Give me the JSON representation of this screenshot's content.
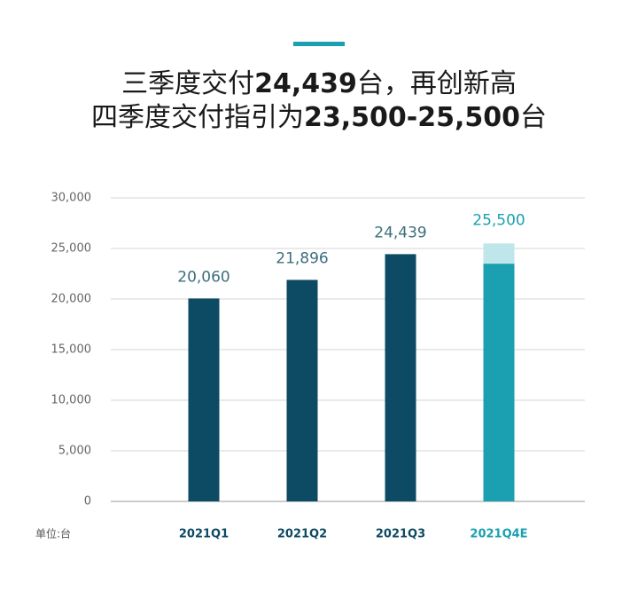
{
  "chart_data": {
    "type": "bar",
    "title": [
      [
        "三季度交付",
        "24,439",
        "台，再创新高"
      ],
      [
        "四季度交付指引为",
        "23,500-25,500",
        "台"
      ]
    ],
    "unit_label": "单位:台",
    "categories": [
      "2021Q1",
      "2021Q2",
      "2021Q3",
      "2021Q4E"
    ],
    "category_colors": [
      "#0d4a63",
      "#0d4a63",
      "#0d4a63",
      "#1aa0b0"
    ],
    "series": [
      {
        "values": [
          20060,
          21896,
          24439,
          null
        ],
        "value_labels": [
          "20,060",
          "21,896",
          "24,439",
          null
        ],
        "color": "#0d4a63"
      },
      {
        "low": [
          null,
          null,
          null,
          23500
        ],
        "high": [
          null,
          null,
          null,
          25500
        ],
        "value_labels": [
          null,
          null,
          null,
          "25,500"
        ],
        "color": "#1aa0b0",
        "range_color": "#bfe6ea"
      }
    ],
    "ylim": [
      0,
      30000
    ],
    "yticks": [
      0,
      {
        "value": 5000,
        "label": "5,000"
      },
      {
        "value": 10000,
        "label": "10,000"
      },
      {
        "value": 15000,
        "label": "15,000"
      },
      {
        "value": 20000,
        "label": "20,000"
      },
      {
        "value": 25000,
        "label": "25,000"
      },
      {
        "value": 30000,
        "label": "30,000"
      }
    ],
    "grid": true
  }
}
